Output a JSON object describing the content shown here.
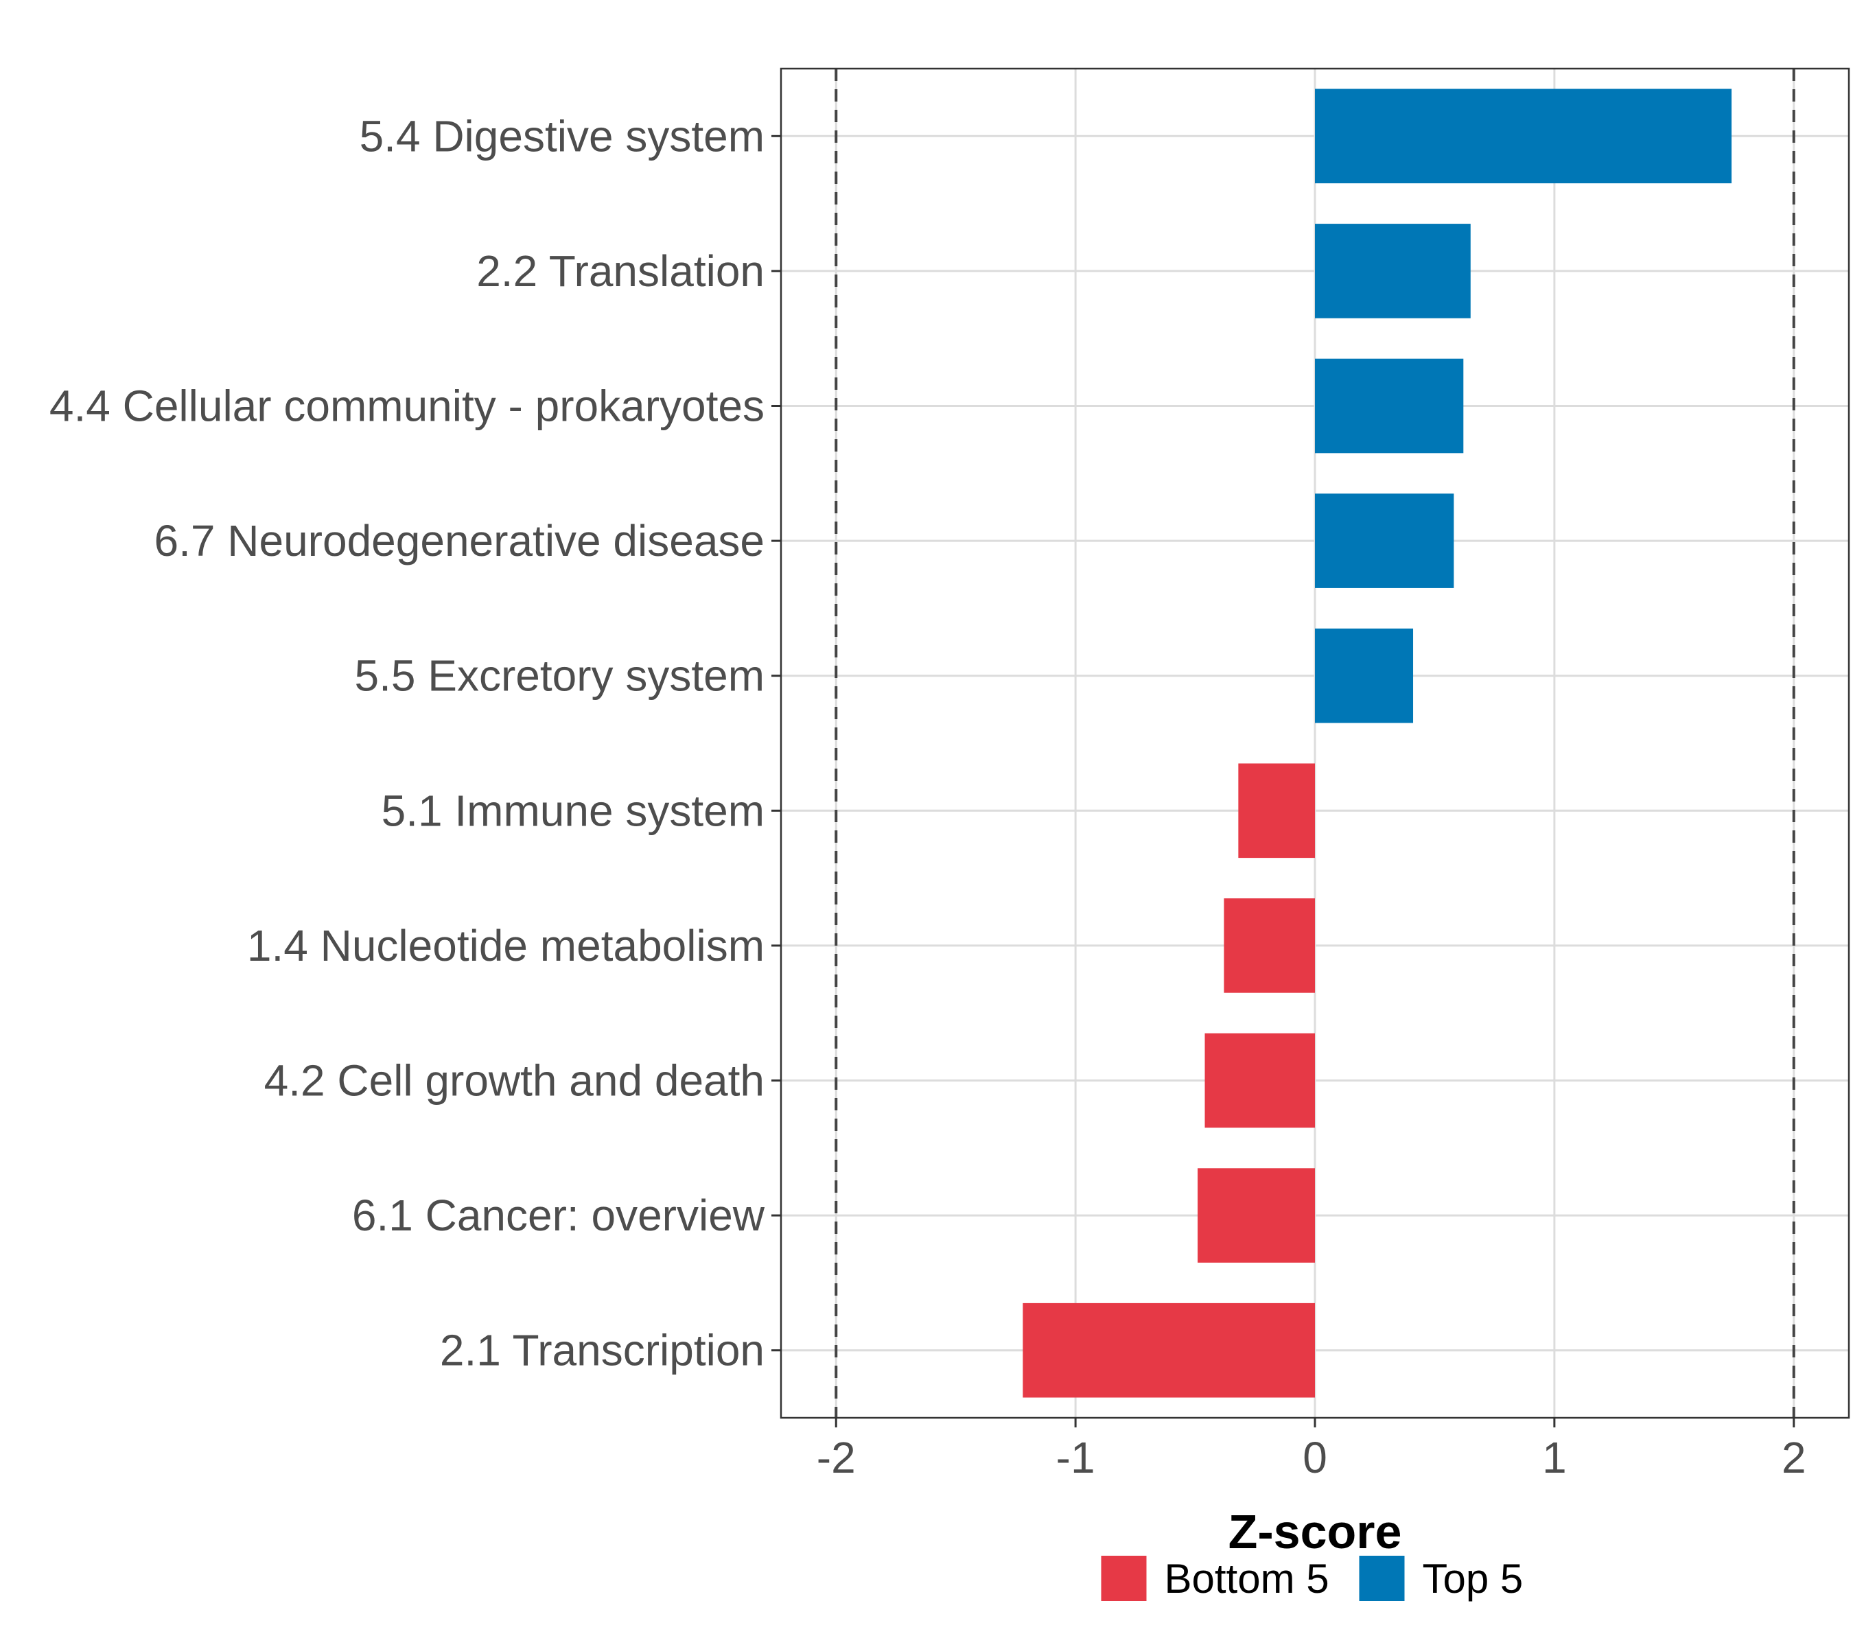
{
  "chart_data": {
    "type": "bar",
    "orientation": "horizontal",
    "categories": [
      "5.4 Digestive system",
      "2.2 Translation",
      "4.4 Cellular community - prokaryotes",
      "6.7 Neurodegenerative disease",
      "5.5 Excretory system",
      "5.1 Immune system",
      "1.4 Nucleotide metabolism",
      "4.2 Cell growth and death",
      "6.1 Cancer: overview",
      "2.1 Transcription"
    ],
    "values": [
      1.74,
      0.65,
      0.62,
      0.58,
      0.41,
      -0.32,
      -0.38,
      -0.46,
      -0.49,
      -1.22
    ],
    "groups": [
      "Top 5",
      "Top 5",
      "Top 5",
      "Top 5",
      "Top 5",
      "Bottom 5",
      "Bottom 5",
      "Bottom 5",
      "Bottom 5",
      "Bottom 5"
    ],
    "xlabel": "Z-score",
    "ylabel": "",
    "xlim": [
      -2.23,
      2.23
    ],
    "xticks": [
      -2,
      -1,
      0,
      1,
      2
    ],
    "xtick_labels": [
      "-2",
      "-1",
      "0",
      "1",
      "2"
    ],
    "reference_lines": [
      -2,
      2
    ],
    "grid": true,
    "legend": {
      "position": "bottom",
      "entries": [
        {
          "label": "Bottom 5",
          "color": "#e63946"
        },
        {
          "label": "Top 5",
          "color": "#0077b6"
        }
      ]
    },
    "colors": {
      "Top 5": "#0077b6",
      "Bottom 5": "#e63946"
    }
  }
}
